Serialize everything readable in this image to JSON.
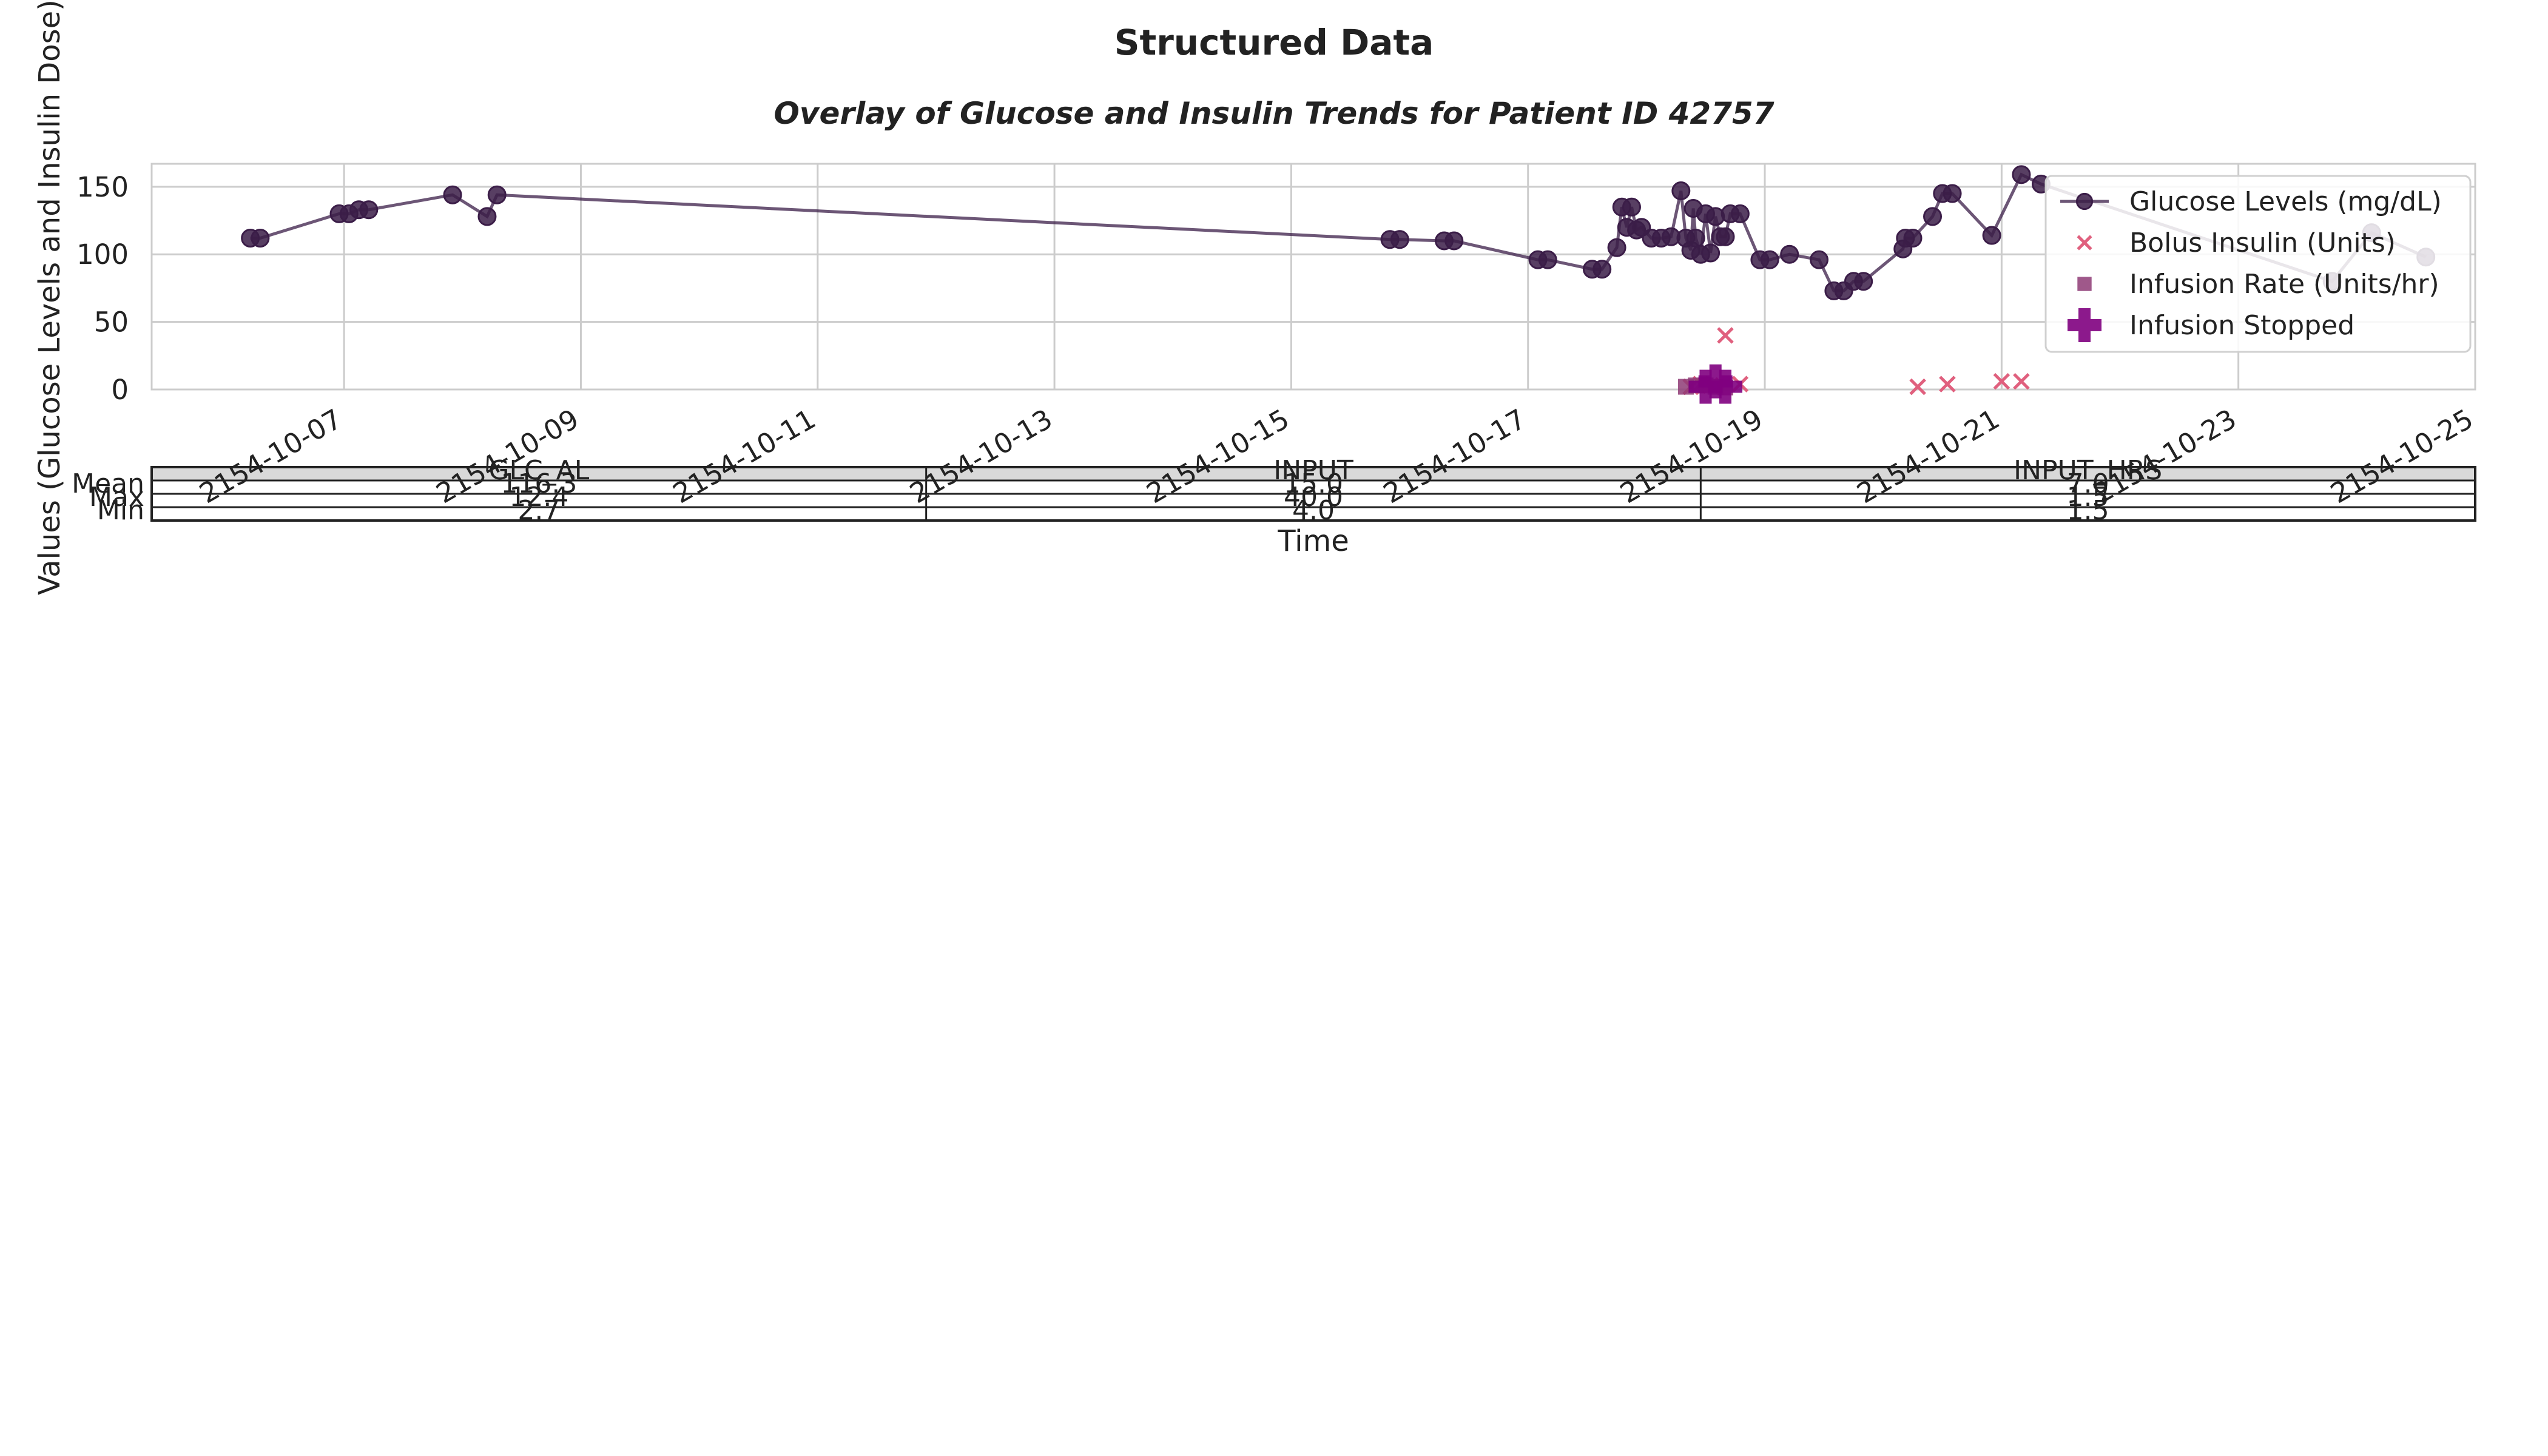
{
  "suptitle": "Structured Data",
  "chart_data": {
    "type": "line",
    "title": "Overlay of Glucose and Insulin Trends for Patient ID 42757",
    "xlabel": "Time",
    "ylabel": "Values (Glucose Levels and Insulin Dose)",
    "xlim": [
      "2154-10-05T09:00",
      "2154-10-25T00:00"
    ],
    "ylim": [
      0,
      167
    ],
    "x_ticks": [
      "2154-10-07",
      "2154-10-09",
      "2154-10-11",
      "2154-10-13",
      "2154-10-15",
      "2154-10-17",
      "2154-10-19",
      "2154-10-21",
      "2154-10-23",
      "2154-10-25"
    ],
    "y_ticks": [
      0,
      50,
      100,
      150
    ],
    "grid": true,
    "legend_position": "top-right",
    "colors": {
      "glucose": "#3b1d48",
      "bolus": "#e0607e",
      "infusion_rate": "#8e3b75",
      "infusion_stopped": "#800080"
    },
    "series": [
      {
        "name": "Glucose Levels (mg/dL)",
        "style": "line-marker",
        "points": [
          [
            "2154-10-06T05:00",
            112
          ],
          [
            "2154-10-06T07:00",
            112
          ],
          [
            "2154-10-06T23:00",
            130
          ],
          [
            "2154-10-07T01:00",
            130
          ],
          [
            "2154-10-07T03:00",
            133
          ],
          [
            "2154-10-07T05:00",
            133
          ],
          [
            "2154-10-07T22:00",
            144
          ],
          [
            "2154-10-08T05:00",
            128
          ],
          [
            "2154-10-08T07:00",
            144
          ],
          [
            "2154-10-15T20:00",
            111
          ],
          [
            "2154-10-15T22:00",
            111
          ],
          [
            "2154-10-16T07:00",
            110
          ],
          [
            "2154-10-16T09:00",
            110
          ],
          [
            "2154-10-17T02:00",
            96
          ],
          [
            "2154-10-17T04:00",
            96
          ],
          [
            "2154-10-17T13:00",
            89
          ],
          [
            "2154-10-17T15:00",
            89
          ],
          [
            "2154-10-17T18:00",
            105
          ],
          [
            "2154-10-17T19:00",
            135
          ],
          [
            "2154-10-17T20:00",
            120
          ],
          [
            "2154-10-17T21:00",
            135
          ],
          [
            "2154-10-17T22:00",
            118
          ],
          [
            "2154-10-17T23:00",
            120
          ],
          [
            "2154-10-18T01:00",
            112
          ],
          [
            "2154-10-18T03:00",
            112
          ],
          [
            "2154-10-18T05:00",
            113
          ],
          [
            "2154-10-18T07:00",
            147
          ],
          [
            "2154-10-18T08:00",
            112
          ],
          [
            "2154-10-18T09:00",
            103
          ],
          [
            "2154-10-18T09:30",
            134
          ],
          [
            "2154-10-18T10:00",
            112
          ],
          [
            "2154-10-18T11:00",
            100
          ],
          [
            "2154-10-18T12:00",
            130
          ],
          [
            "2154-10-18T13:00",
            101
          ],
          [
            "2154-10-18T14:00",
            128
          ],
          [
            "2154-10-18T15:00",
            113
          ],
          [
            "2154-10-18T16:00",
            113
          ],
          [
            "2154-10-18T17:00",
            130
          ],
          [
            "2154-10-18T19:00",
            130
          ],
          [
            "2154-10-18T23:00",
            96
          ],
          [
            "2154-10-19T01:00",
            96
          ],
          [
            "2154-10-19T05:00",
            100
          ],
          [
            "2154-10-19T11:00",
            96
          ],
          [
            "2154-10-19T14:00",
            73
          ],
          [
            "2154-10-19T16:00",
            73
          ],
          [
            "2154-10-19T18:00",
            80
          ],
          [
            "2154-10-19T20:00",
            80
          ],
          [
            "2154-10-20T04:00",
            104
          ],
          [
            "2154-10-20T04:30",
            112
          ],
          [
            "2154-10-20T06:00",
            112
          ],
          [
            "2154-10-20T10:00",
            128
          ],
          [
            "2154-10-20T12:00",
            145
          ],
          [
            "2154-10-20T14:00",
            145
          ],
          [
            "2154-10-20T22:00",
            114
          ],
          [
            "2154-10-21T04:00",
            159
          ],
          [
            "2154-10-21T08:00",
            152
          ],
          [
            "2154-10-23T19:00",
            80
          ],
          [
            "2154-10-24T03:00",
            116
          ],
          [
            "2154-10-24T14:00",
            98
          ]
        ]
      },
      {
        "name": "Bolus Insulin (Units)",
        "style": "x-marker",
        "points": [
          [
            "2154-10-18T09:00",
            2
          ],
          [
            "2154-10-18T11:00",
            4
          ],
          [
            "2154-10-18T13:00",
            3
          ],
          [
            "2154-10-18T16:00",
            40
          ],
          [
            "2154-10-18T19:00",
            4
          ],
          [
            "2154-10-20T07:00",
            2
          ],
          [
            "2154-10-20T13:00",
            4
          ],
          [
            "2154-10-21T00:00",
            6
          ],
          [
            "2154-10-21T04:00",
            6
          ]
        ]
      },
      {
        "name": "Infusion Rate (Units/hr)",
        "style": "square-marker",
        "points": [
          [
            "2154-10-18T08:00",
            2
          ],
          [
            "2154-10-18T10:00",
            3
          ],
          [
            "2154-10-18T12:00",
            3
          ],
          [
            "2154-10-18T14:00",
            2
          ],
          [
            "2154-10-18T16:00",
            1.5
          ]
        ]
      },
      {
        "name": "Infusion Stopped",
        "style": "plus-marker",
        "points": [
          [
            "2154-10-18T12:00",
            2
          ],
          [
            "2154-10-18T14:00",
            6
          ],
          [
            "2154-10-18T16:00",
            2
          ]
        ]
      }
    ],
    "stats_table": {
      "columns": [
        "GLC_AL",
        "INPUT",
        "INPUT_HRS"
      ],
      "rows": [
        {
          "label": "Mean",
          "values": [
            "116.3",
            "15.0",
            "7.0"
          ]
        },
        {
          "label": "Max",
          "values": [
            "12.4",
            "40.0",
            "1.5"
          ]
        },
        {
          "label": "Min",
          "values": [
            "2.7",
            "4.0",
            "1.5"
          ]
        }
      ]
    }
  }
}
